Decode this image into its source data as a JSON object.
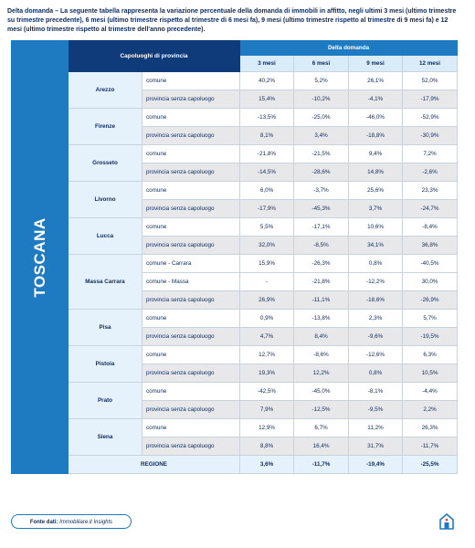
{
  "intro": "Delta domanda – La seguente tabella rappresenta la variazione percentuale della domanda di immobili in affitto, negli ultimi 3 mesi (ultimo trimestre su trimestre precedente), 6 mesi (ultimo trimestre rispetto al trimestre di 6 mesi fa), 9 mesi (ultimo trimestre rispetto al trimestre di 9 mesi fa) e 12 mesi (ultimo trimestre rispetto al trimestre dell'anno precedente).",
  "region_name": "TOSCANA",
  "header": {
    "capoluoghi": "Capoluoghi di provincia",
    "delta": "Delta domanda",
    "cols": [
      "3 mesi",
      "6 mesi",
      "9 mesi",
      "12 mesi"
    ]
  },
  "rows": [
    {
      "city": "Arezzo",
      "type": "comune",
      "v": [
        "40,2%",
        "5,2%",
        "26,1%",
        "52,0%"
      ]
    },
    {
      "city": "Arezzo",
      "type": "provincia senza capoluogo",
      "v": [
        "15,4%",
        "-10,2%",
        "-4,1%",
        "-17,9%"
      ]
    },
    {
      "city": "Firenze",
      "type": "comune",
      "v": [
        "-13,5%",
        "-25,0%",
        "-46,0%",
        "-52,9%"
      ]
    },
    {
      "city": "Firenze",
      "type": "provincia senza capoluogo",
      "v": [
        "8,1%",
        "3,4%",
        "-18,8%",
        "-30,9%"
      ]
    },
    {
      "city": "Grosseto",
      "type": "comune",
      "v": [
        "-21,8%",
        "-21,5%",
        "9,4%",
        "7,2%"
      ]
    },
    {
      "city": "Grosseto",
      "type": "provincia senza capoluogo",
      "v": [
        "-14,5%",
        "-28,6%",
        "14,8%",
        "-2,6%"
      ]
    },
    {
      "city": "Livorno",
      "type": "comune",
      "v": [
        "6,0%",
        "-3,7%",
        "25,6%",
        "23,3%"
      ]
    },
    {
      "city": "Livorno",
      "type": "provincia senza capoluogo",
      "v": [
        "-17,9%",
        "-45,3%",
        "3,7%",
        "-24,7%"
      ]
    },
    {
      "city": "Lucca",
      "type": "comune",
      "v": [
        "5,5%",
        "-17,1%",
        "10,6%",
        "-8,4%"
      ]
    },
    {
      "city": "Lucca",
      "type": "provincia senza capoluogo",
      "v": [
        "32,0%",
        "-8,5%",
        "34,1%",
        "36,8%"
      ]
    },
    {
      "city": "Massa Carrara",
      "type": "comune - Carrara",
      "v": [
        "15,9%",
        "-26,3%",
        "0,8%",
        "-40,5%"
      ]
    },
    {
      "city": "Massa Carrara",
      "type": "comune - Massa",
      "v": [
        "-",
        "-21,8%",
        "-12,2%",
        "30,0%"
      ]
    },
    {
      "city": "Massa Carrara",
      "type": "provincia senza capoluogo",
      "v": [
        "26,9%",
        "-11,1%",
        "-18,6%",
        "-26,9%"
      ]
    },
    {
      "city": "Pisa",
      "type": "comune",
      "v": [
        "0,9%",
        "-13,8%",
        "2,3%",
        "5,7%"
      ]
    },
    {
      "city": "Pisa",
      "type": "provincia senza capoluogo",
      "v": [
        "4,7%",
        "8,4%",
        "-9,6%",
        "-19,5%"
      ]
    },
    {
      "city": "Pistoia",
      "type": "comune",
      "v": [
        "12,7%",
        "-8,6%",
        "-12,6%",
        "6,3%"
      ]
    },
    {
      "city": "Pistoia",
      "type": "provincia senza capoluogo",
      "v": [
        "19,3%",
        "12,2%",
        "0,8%",
        "10,5%"
      ]
    },
    {
      "city": "Prato",
      "type": "comune",
      "v": [
        "-42,5%",
        "-45,0%",
        "-8,1%",
        "-4,4%"
      ]
    },
    {
      "city": "Prato",
      "type": "provincia senza capoluogo",
      "v": [
        "7,9%",
        "-12,5%",
        "-9,5%",
        "2,2%"
      ]
    },
    {
      "city": "Siena",
      "type": "comune",
      "v": [
        "12,9%",
        "6,7%",
        "11,2%",
        "26,3%"
      ]
    },
    {
      "city": "Siena",
      "type": "provincia senza capoluogo",
      "v": [
        "8,8%",
        "16,4%",
        "31,7%",
        "-11,7%"
      ]
    }
  ],
  "regione": {
    "label": "REGIONE",
    "v": [
      "3,6%",
      "-11,7%",
      "-19,4%",
      "-25,5%"
    ]
  },
  "source": {
    "label": "Fonte dati:",
    "name": "Immobiliare.it Insights"
  },
  "logo": {
    "icon": "house-icon",
    "color": "#1e7bc2"
  }
}
